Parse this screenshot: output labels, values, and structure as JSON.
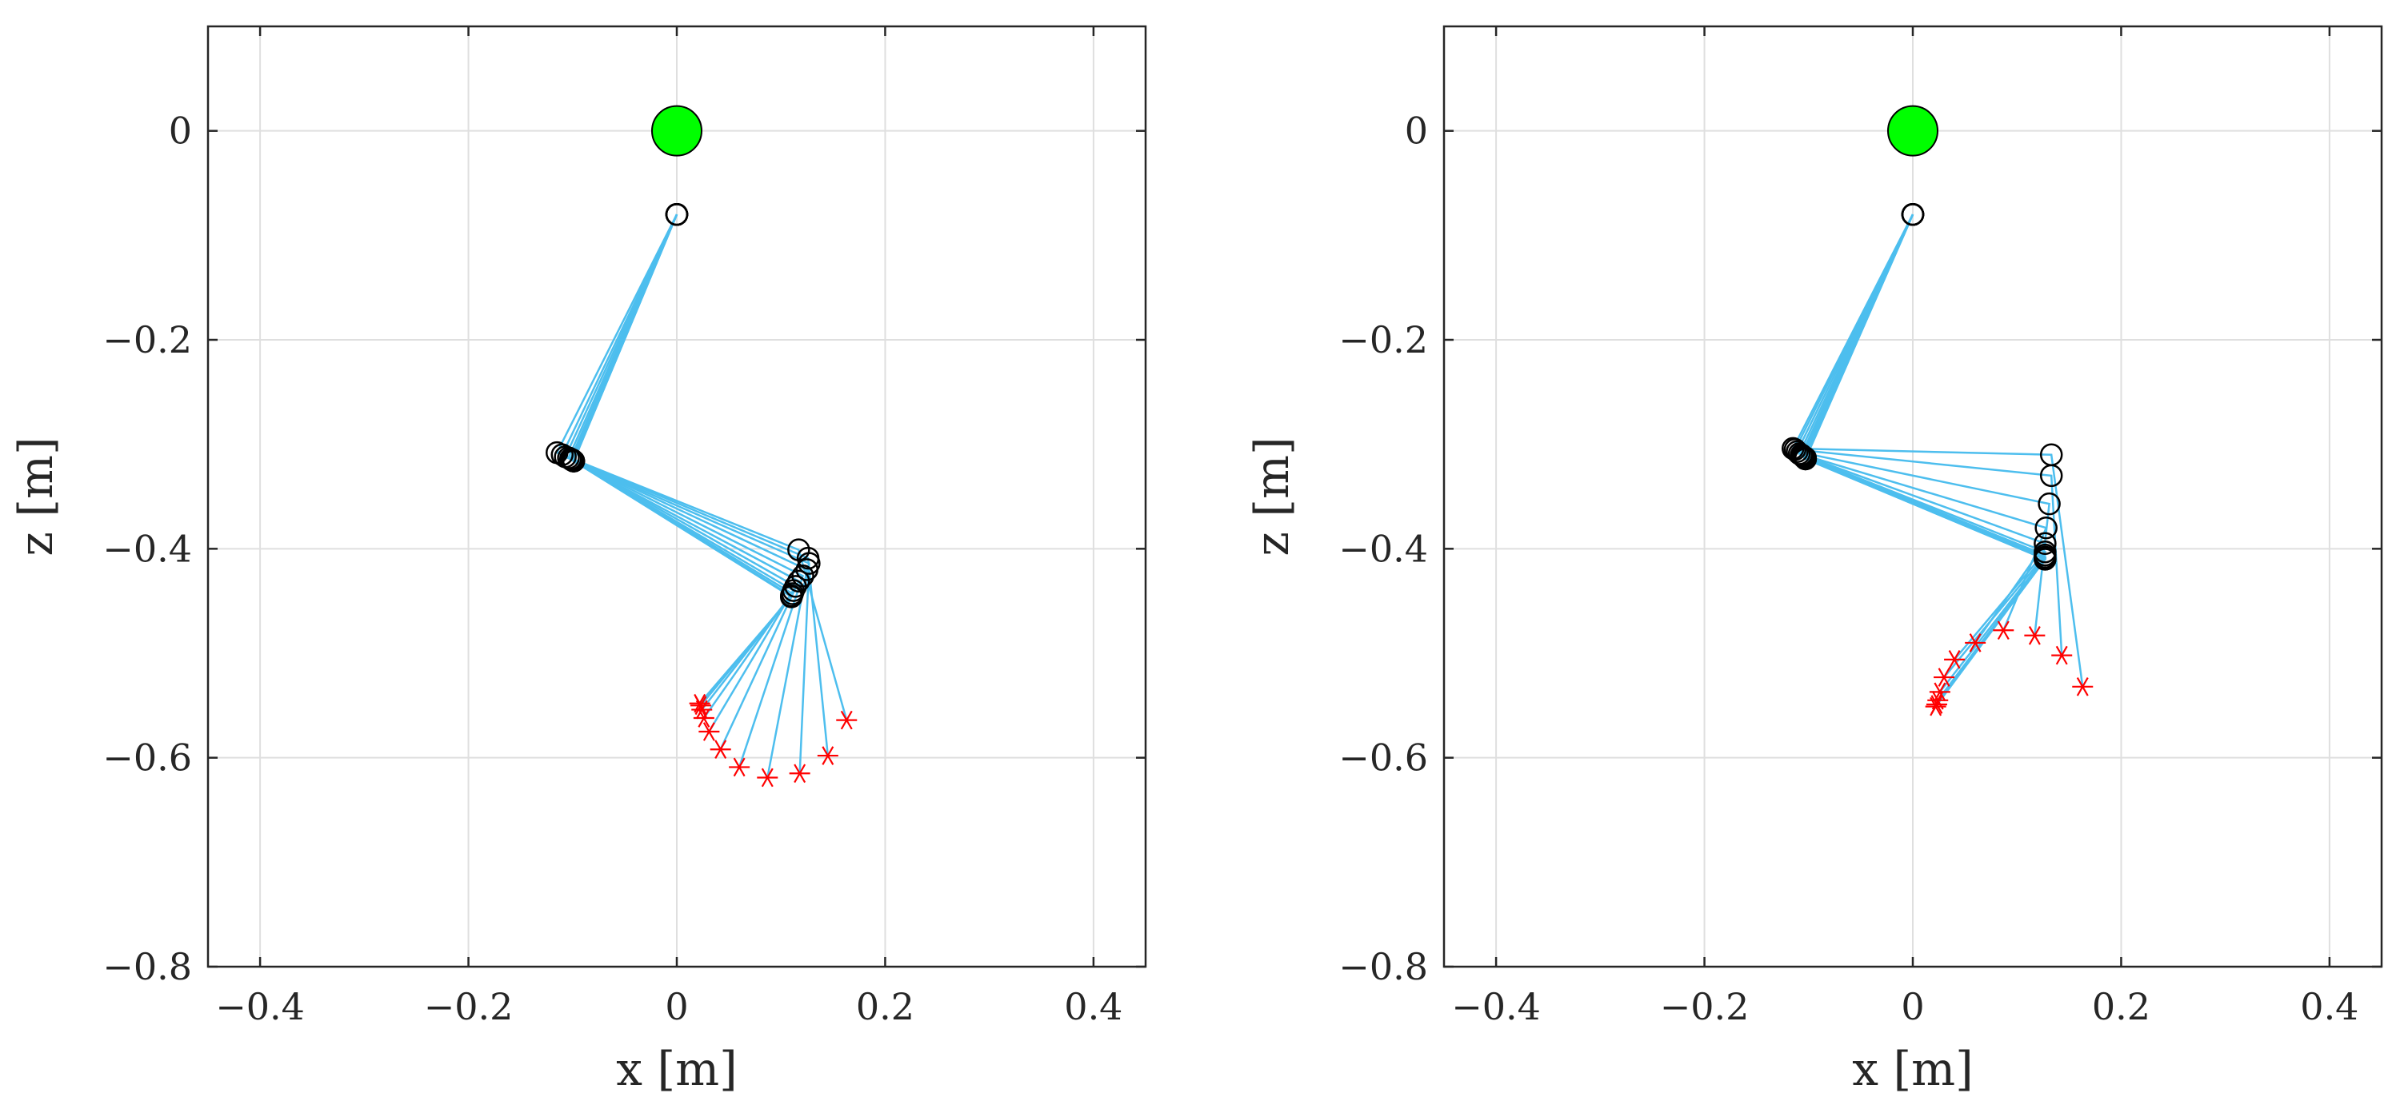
{
  "colors": {
    "link": "#4DBEEE",
    "joint": "#000000",
    "end_effector": "#FF0000",
    "base": "#00FF00",
    "grid": "#DFDFDF",
    "axes": "#262626"
  },
  "chart_data": [
    {
      "type": "scatter",
      "subtype": "planar arm configurations (stick plot)",
      "xlabel": "x [m]",
      "ylabel": "z [m]",
      "xlim": [
        -0.45,
        0.45
      ],
      "ylim": [
        -0.8,
        0.1
      ],
      "xticks": [
        -0.4,
        -0.2,
        0,
        0.2,
        0.4
      ],
      "xtick_labels": [
        "−0.4",
        "−0.2",
        "0",
        "0.2",
        "0.4"
      ],
      "yticks": [
        0,
        -0.2,
        -0.4,
        -0.6,
        -0.8
      ],
      "ytick_labels": [
        "0",
        "−0.2",
        "−0.4",
        "−0.6",
        "−0.8"
      ],
      "grid": true,
      "base": {
        "x": 0,
        "z": 0
      },
      "configurations": [
        {
          "shoulder": [
            0,
            -0.08
          ],
          "elbow": [
            -0.115,
            -0.308
          ],
          "wrist": [
            0.117,
            -0.401
          ],
          "tip": [
            0.163,
            -0.564
          ]
        },
        {
          "shoulder": [
            0,
            -0.08
          ],
          "elbow": [
            -0.11,
            -0.31
          ],
          "wrist": [
            0.126,
            -0.409
          ],
          "tip": [
            0.145,
            -0.598
          ]
        },
        {
          "shoulder": [
            0,
            -0.08
          ],
          "elbow": [
            -0.107,
            -0.312
          ],
          "wrist": [
            0.127,
            -0.414
          ],
          "tip": [
            0.118,
            -0.615
          ]
        },
        {
          "shoulder": [
            0,
            -0.08
          ],
          "elbow": [
            -0.104,
            -0.313
          ],
          "wrist": [
            0.125,
            -0.42
          ],
          "tip": [
            0.087,
            -0.619
          ]
        },
        {
          "shoulder": [
            0,
            -0.08
          ],
          "elbow": [
            -0.102,
            -0.314
          ],
          "wrist": [
            0.121,
            -0.426
          ],
          "tip": [
            0.06,
            -0.609
          ]
        },
        {
          "shoulder": [
            0,
            -0.08
          ],
          "elbow": [
            -0.101,
            -0.315
          ],
          "wrist": [
            0.117,
            -0.431
          ],
          "tip": [
            0.042,
            -0.592
          ]
        },
        {
          "shoulder": [
            0,
            -0.08
          ],
          "elbow": [
            -0.1,
            -0.315
          ],
          "wrist": [
            0.114,
            -0.436
          ],
          "tip": [
            0.031,
            -0.575
          ]
        },
        {
          "shoulder": [
            0,
            -0.08
          ],
          "elbow": [
            -0.099,
            -0.316
          ],
          "wrist": [
            0.112,
            -0.44
          ],
          "tip": [
            0.026,
            -0.562
          ]
        },
        {
          "shoulder": [
            0,
            -0.08
          ],
          "elbow": [
            -0.099,
            -0.316
          ],
          "wrist": [
            0.111,
            -0.443
          ],
          "tip": [
            0.024,
            -0.554
          ]
        },
        {
          "shoulder": [
            0,
            -0.08
          ],
          "elbow": [
            -0.099,
            -0.316
          ],
          "wrist": [
            0.11,
            -0.445
          ],
          "tip": [
            0.023,
            -0.55
          ]
        },
        {
          "shoulder": [
            0,
            -0.08
          ],
          "elbow": [
            -0.099,
            -0.316
          ],
          "wrist": [
            0.11,
            -0.446
          ],
          "tip": [
            0.022,
            -0.548
          ]
        }
      ]
    },
    {
      "type": "scatter",
      "subtype": "planar arm configurations (stick plot)",
      "xlabel": "x [m]",
      "ylabel": "z [m]",
      "xlim": [
        -0.45,
        0.45
      ],
      "ylim": [
        -0.8,
        0.1
      ],
      "xticks": [
        -0.4,
        -0.2,
        0,
        0.2,
        0.4
      ],
      "xtick_labels": [
        "−0.4",
        "−0.2",
        "0",
        "0.2",
        "0.4"
      ],
      "yticks": [
        0,
        -0.2,
        -0.4,
        -0.6,
        -0.8
      ],
      "ytick_labels": [
        "0",
        "−0.2",
        "−0.4",
        "−0.6",
        "−0.8"
      ],
      "grid": true,
      "base": {
        "x": 0,
        "z": 0
      },
      "configurations": [
        {
          "shoulder": [
            0,
            -0.08
          ],
          "elbow": [
            -0.115,
            -0.304
          ],
          "wrist": [
            0.133,
            -0.31
          ],
          "tip": [
            0.163,
            -0.532
          ]
        },
        {
          "shoulder": [
            0,
            -0.08
          ],
          "elbow": [
            -0.113,
            -0.305
          ],
          "wrist": [
            0.133,
            -0.33
          ],
          "tip": [
            0.143,
            -0.502
          ]
        },
        {
          "shoulder": [
            0,
            -0.08
          ],
          "elbow": [
            -0.111,
            -0.307
          ],
          "wrist": [
            0.131,
            -0.357
          ],
          "tip": [
            0.117,
            -0.483
          ]
        },
        {
          "shoulder": [
            0,
            -0.08
          ],
          "elbow": [
            -0.109,
            -0.309
          ],
          "wrist": [
            0.128,
            -0.38
          ],
          "tip": [
            0.087,
            -0.478
          ]
        },
        {
          "shoulder": [
            0,
            -0.08
          ],
          "elbow": [
            -0.107,
            -0.31
          ],
          "wrist": [
            0.127,
            -0.395
          ],
          "tip": [
            0.06,
            -0.49
          ]
        },
        {
          "shoulder": [
            0,
            -0.08
          ],
          "elbow": [
            -0.106,
            -0.311
          ],
          "wrist": [
            0.127,
            -0.403
          ],
          "tip": [
            0.04,
            -0.506
          ]
        },
        {
          "shoulder": [
            0,
            -0.08
          ],
          "elbow": [
            -0.105,
            -0.312
          ],
          "wrist": [
            0.127,
            -0.406
          ],
          "tip": [
            0.03,
            -0.523
          ]
        },
        {
          "shoulder": [
            0,
            -0.08
          ],
          "elbow": [
            -0.104,
            -0.313
          ],
          "wrist": [
            0.127,
            -0.408
          ],
          "tip": [
            0.026,
            -0.537
          ]
        },
        {
          "shoulder": [
            0,
            -0.08
          ],
          "elbow": [
            -0.103,
            -0.313
          ],
          "wrist": [
            0.127,
            -0.409
          ],
          "tip": [
            0.024,
            -0.545
          ]
        },
        {
          "shoulder": [
            0,
            -0.08
          ],
          "elbow": [
            -0.103,
            -0.314
          ],
          "wrist": [
            0.127,
            -0.41
          ],
          "tip": [
            0.023,
            -0.549
          ]
        },
        {
          "shoulder": [
            0,
            -0.08
          ],
          "elbow": [
            -0.103,
            -0.314
          ],
          "wrist": [
            0.127,
            -0.41
          ],
          "tip": [
            0.022,
            -0.551
          ]
        }
      ]
    }
  ]
}
